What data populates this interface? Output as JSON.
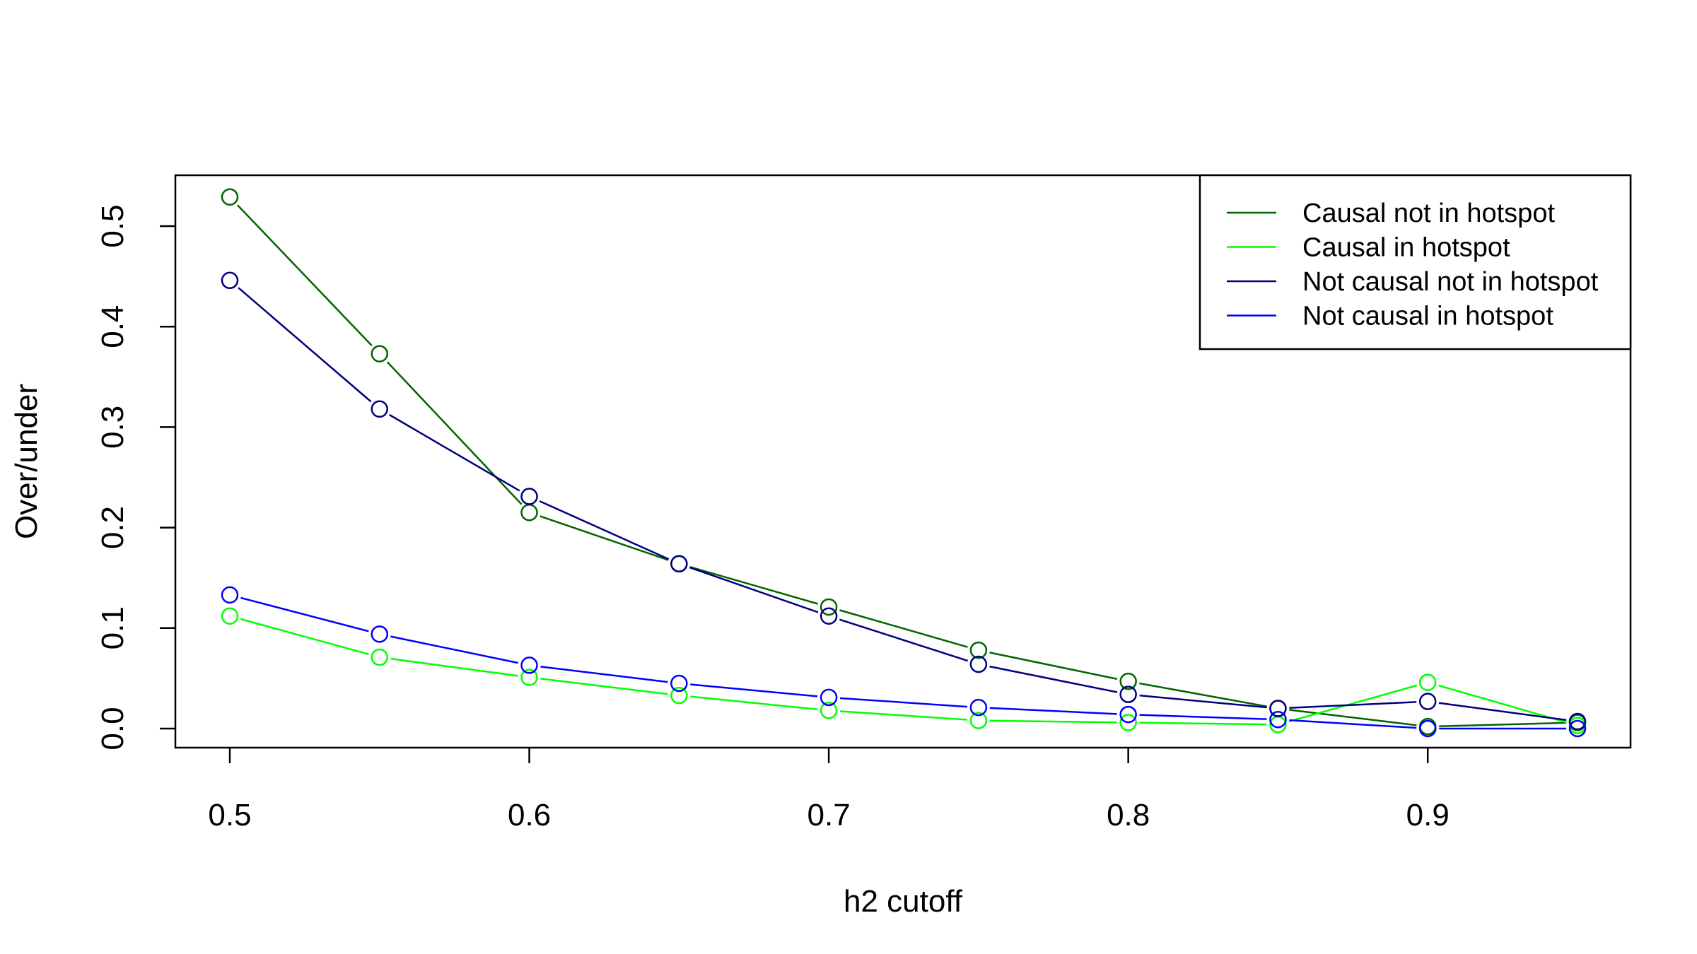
{
  "chart_data": {
    "type": "line",
    "title": "",
    "xlabel": "h2 cutoff",
    "ylabel": "Over/under",
    "xlim": [
      0.5,
      0.95
    ],
    "ylim": [
      0.0,
      0.5
    ],
    "x": [
      0.5,
      0.55,
      0.6,
      0.65,
      0.7,
      0.75,
      0.8,
      0.85,
      0.9,
      0.95
    ],
    "x_ticks": [
      "0.5",
      "0.6",
      "0.7",
      "0.8",
      "0.9"
    ],
    "x_tick_values": [
      0.5,
      0.6,
      0.7,
      0.8,
      0.9
    ],
    "y_ticks": [
      "0.0",
      "0.1",
      "0.2",
      "0.3",
      "0.4",
      "0.5"
    ],
    "y_tick_values": [
      0.0,
      0.1,
      0.2,
      0.3,
      0.4,
      0.5
    ],
    "grid": false,
    "legend_position": "top-right",
    "marker": "open-circle",
    "series": [
      {
        "name": "Causal not in hotspot",
        "color": "#006400",
        "values": [
          0.529,
          0.373,
          0.215,
          0.164,
          0.121,
          0.078,
          0.047,
          0.02,
          0.002,
          0.006
        ]
      },
      {
        "name": "Causal in hotspot",
        "color": "#00FF00",
        "values": [
          0.112,
          0.071,
          0.051,
          0.033,
          0.018,
          0.008,
          0.006,
          0.004,
          0.046,
          0.003
        ]
      },
      {
        "name": "Not causal not in hotspot",
        "color": "#000080",
        "values": [
          0.446,
          0.318,
          0.231,
          0.164,
          0.112,
          0.064,
          0.034,
          0.02,
          0.027,
          0.007
        ]
      },
      {
        "name": "Not causal in hotspot",
        "color": "#0000FF",
        "values": [
          0.133,
          0.094,
          0.063,
          0.045,
          0.031,
          0.021,
          0.014,
          0.009,
          0.0,
          0.0
        ]
      }
    ]
  }
}
